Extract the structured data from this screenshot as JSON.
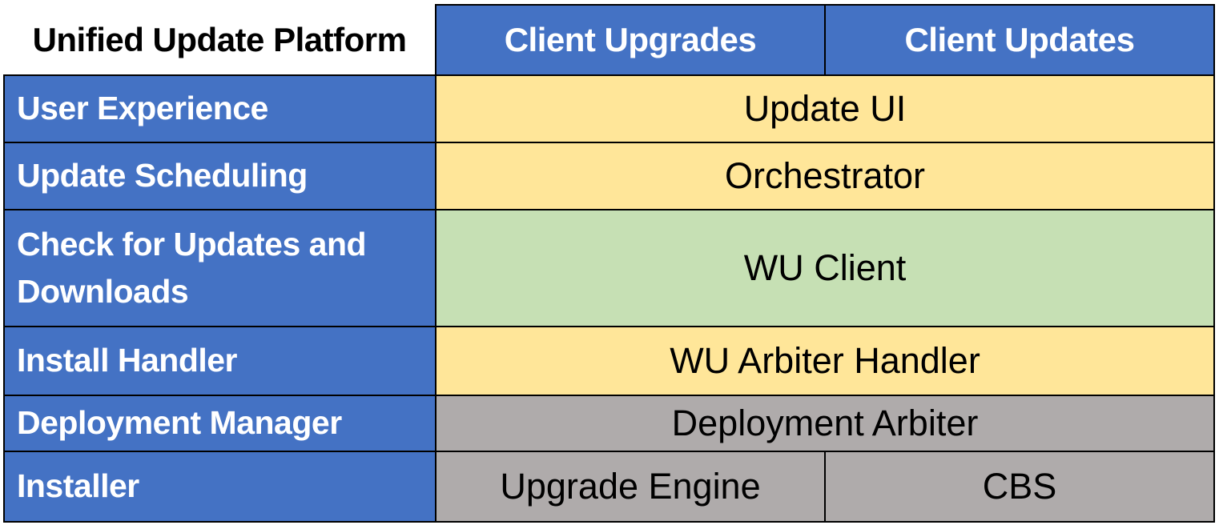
{
  "table": {
    "title": "Unified Update Platform",
    "column_headers": [
      {
        "label": "Client Upgrades"
      },
      {
        "label": "Client Updates"
      }
    ],
    "rows": [
      {
        "label": "User Experience",
        "component": "Update UI",
        "color": "#FFE699"
      },
      {
        "label": "Update Scheduling",
        "component": "Orchestrator",
        "color": "#FFE699"
      },
      {
        "label": "Check for Updates and Downloads",
        "component": "WU Client",
        "color": "#C6E0B4"
      },
      {
        "label": "Install Handler",
        "component": "WU Arbiter Handler",
        "color": "#FFE699"
      },
      {
        "label": "Deployment Manager",
        "component": "Deployment Arbiter",
        "color": "#AFABAB"
      },
      {
        "label": "Installer",
        "components": [
          "Upgrade Engine",
          "CBS"
        ],
        "color": "#AFABAB"
      }
    ],
    "colors": {
      "header_blue": "#4472C4",
      "component_yellow": "#FFE699",
      "component_green": "#C6E0B4",
      "component_gray": "#AFABAB",
      "border": "#000000",
      "label_text": "#ffffff",
      "component_text": "#000000"
    }
  }
}
